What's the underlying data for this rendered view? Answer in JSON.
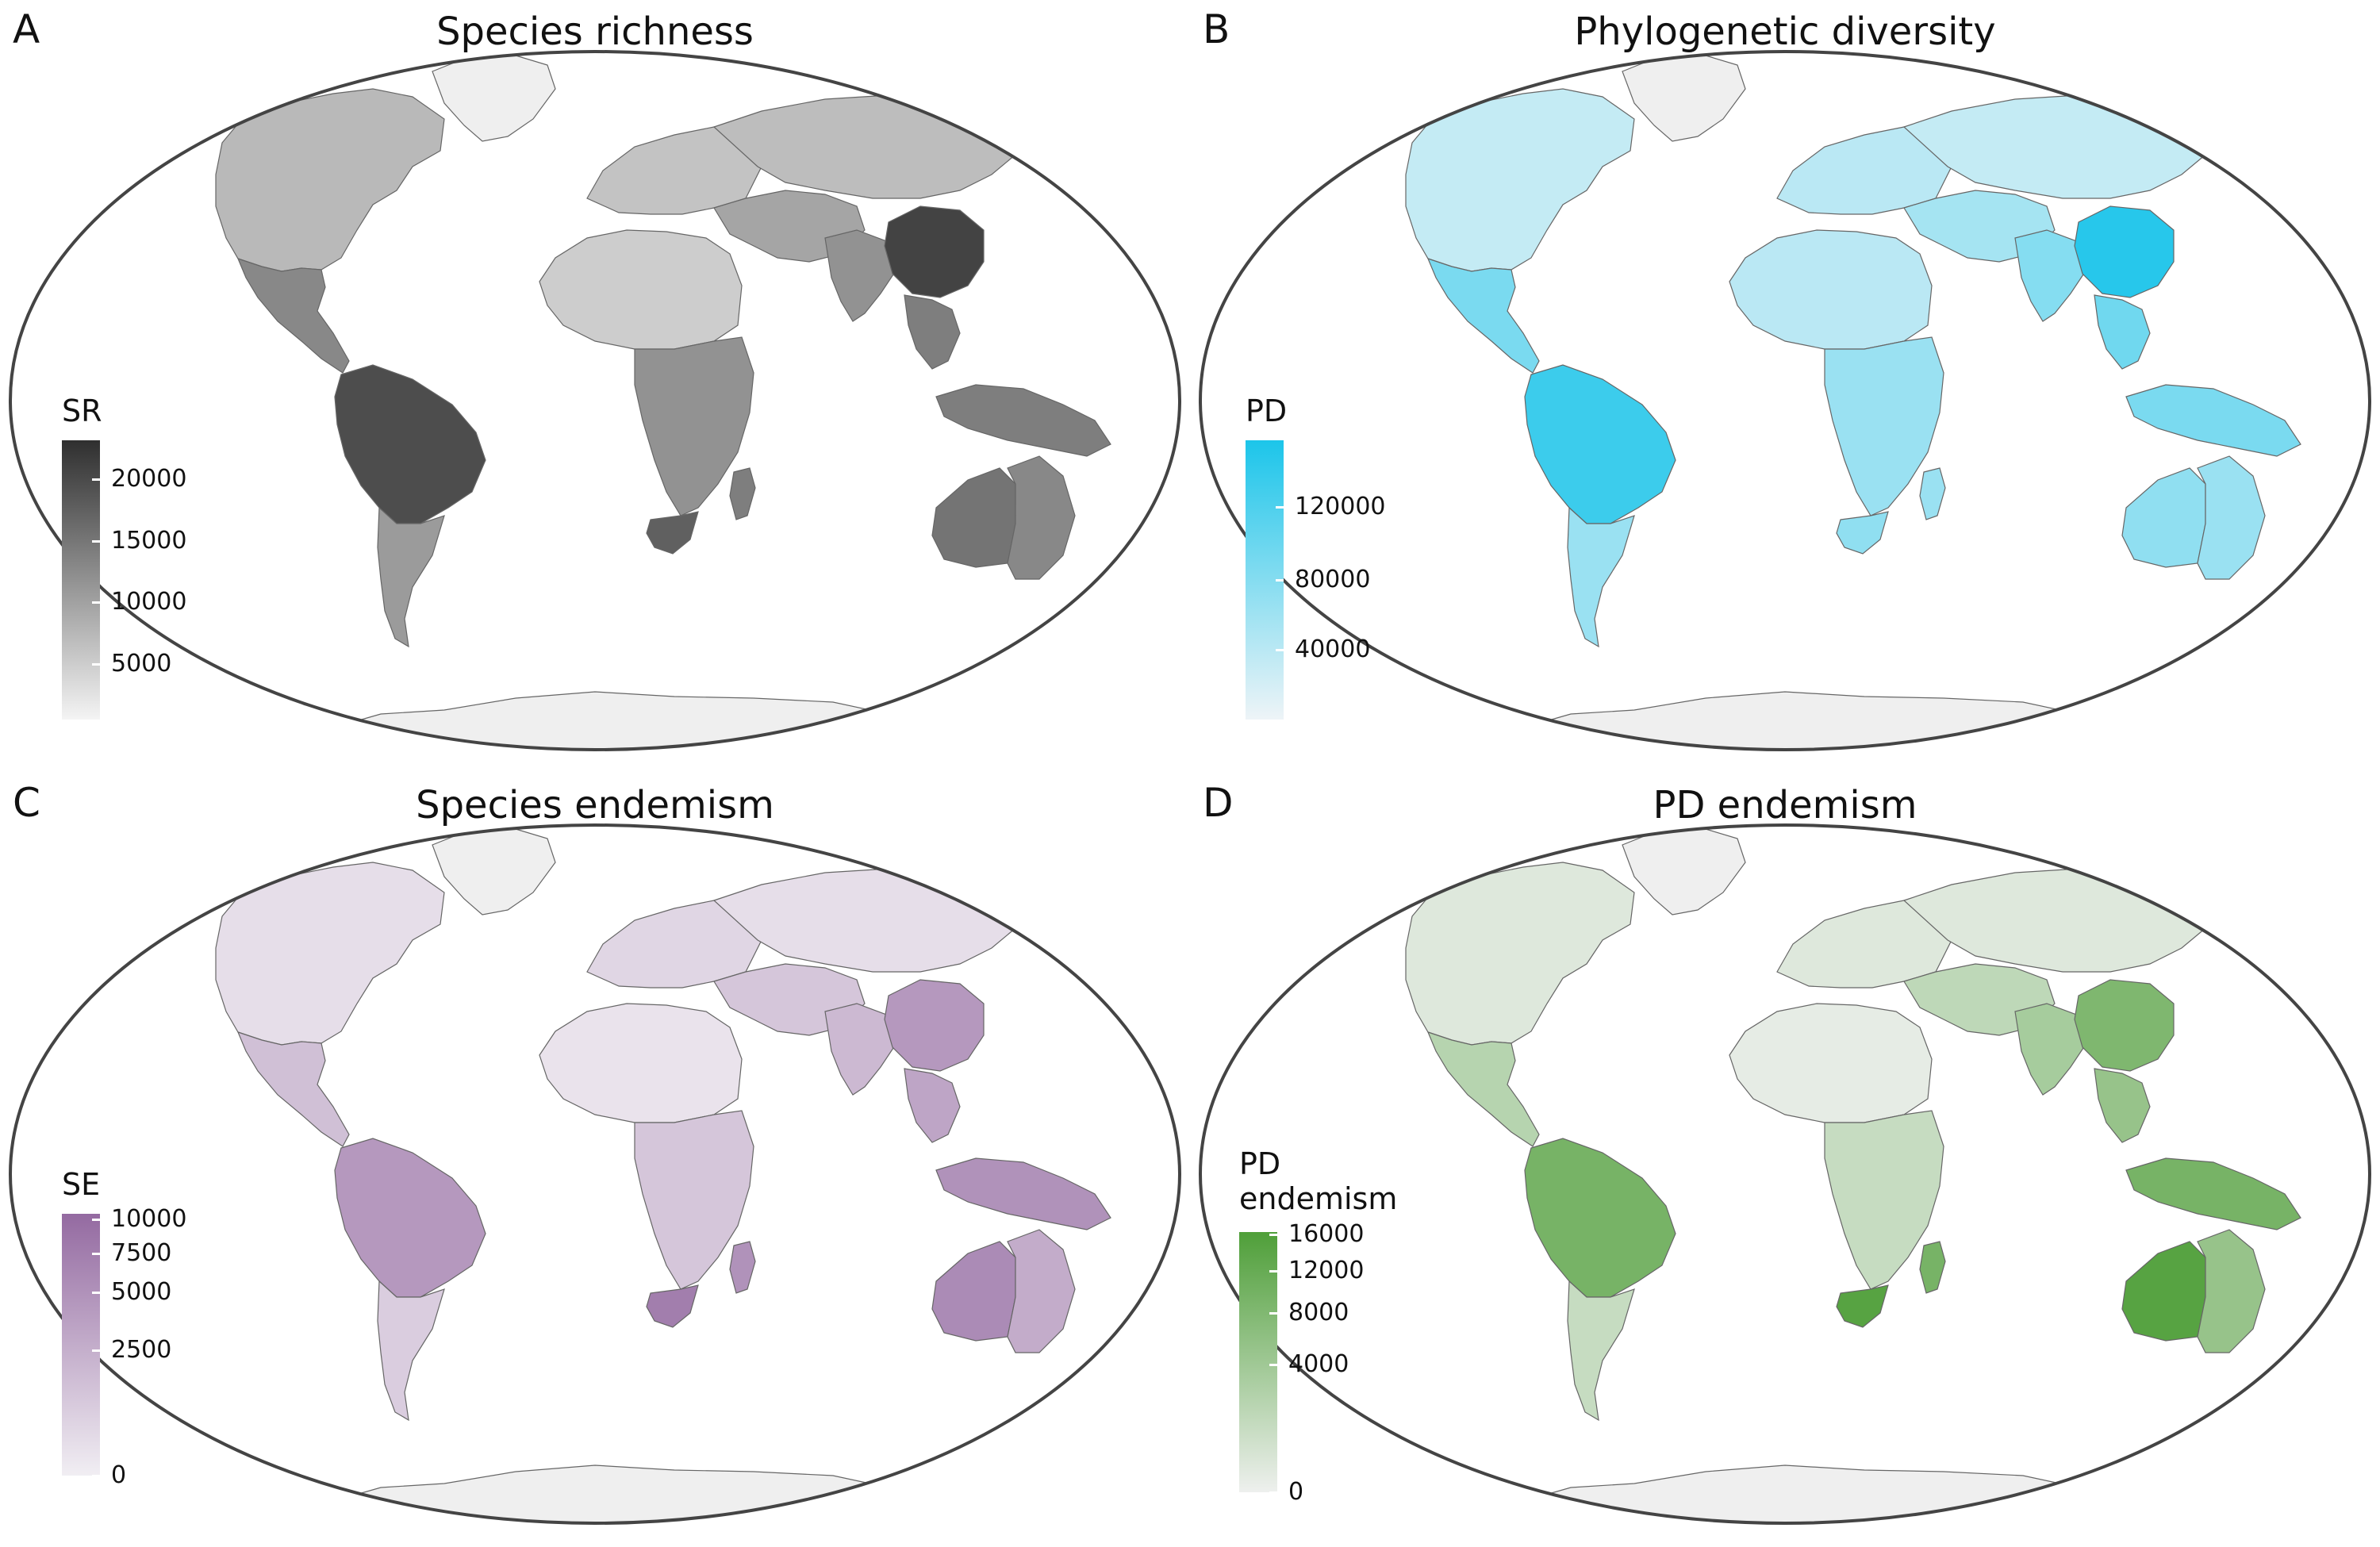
{
  "panels": [
    {
      "label": "A",
      "title": "Species richness",
      "legend": {
        "title": "SR",
        "colors": [
          "#f4f4f4",
          "#2f2f2f"
        ],
        "ticks": [
          {
            "label": "20000",
            "frac": 0.86
          },
          {
            "label": "15000",
            "frac": 0.64
          },
          {
            "label": "10000",
            "frac": 0.42
          },
          {
            "label": "5000",
            "frac": 0.2
          }
        ]
      }
    },
    {
      "label": "B",
      "title": "Phylogenetic diversity",
      "legend": {
        "title": "PD",
        "colors": [
          "#eef4f7",
          "#1cc5ea"
        ],
        "ticks": [
          {
            "label": "120000",
            "frac": 0.76
          },
          {
            "label": "80000",
            "frac": 0.5
          },
          {
            "label": "40000",
            "frac": 0.25
          }
        ]
      }
    },
    {
      "label": "C",
      "title": "Species endemism",
      "legend": {
        "title": "SE",
        "colors": [
          "#f1eef3",
          "#946aa1"
        ],
        "ticks": [
          {
            "label": "10000",
            "frac": 0.98
          },
          {
            "label": "7500",
            "frac": 0.85
          },
          {
            "label": "5000",
            "frac": 0.7
          },
          {
            "label": "2500",
            "frac": 0.48
          },
          {
            "label": "0",
            "frac": 0.0
          }
        ]
      }
    },
    {
      "label": "D",
      "title": "PD endemism",
      "legend": {
        "title": "PD\nendemism",
        "colors": [
          "#eef0ee",
          "#4f9f39"
        ],
        "ticks": [
          {
            "label": "16000",
            "frac": 0.99
          },
          {
            "label": "12000",
            "frac": 0.85
          },
          {
            "label": "8000",
            "frac": 0.69
          },
          {
            "label": "4000",
            "frac": 0.49
          },
          {
            "label": "0",
            "frac": 0.0
          }
        ]
      }
    }
  ],
  "map_data": {
    "regions": [
      {
        "name": "north-america",
        "values": [
          0.3,
          0.2,
          0.12,
          0.1
        ]
      },
      {
        "name": "mexico",
        "values": [
          0.55,
          0.55,
          0.35,
          0.35
        ]
      },
      {
        "name": "amazon",
        "values": [
          0.85,
          0.85,
          0.65,
          0.75
        ]
      },
      {
        "name": "south-america-south",
        "values": [
          0.45,
          0.4,
          0.25,
          0.25
        ]
      },
      {
        "name": "europe",
        "values": [
          0.25,
          0.25,
          0.18,
          0.1
        ]
      },
      {
        "name": "north-asia",
        "values": [
          0.28,
          0.2,
          0.12,
          0.1
        ]
      },
      {
        "name": "middle-east",
        "values": [
          0.4,
          0.35,
          0.3,
          0.3
        ]
      },
      {
        "name": "north-africa",
        "values": [
          0.2,
          0.25,
          0.08,
          0.05
        ]
      },
      {
        "name": "central-africa",
        "values": [
          0.5,
          0.4,
          0.3,
          0.25
        ]
      },
      {
        "name": "south-africa",
        "values": [
          0.75,
          0.45,
          0.85,
          0.95
        ]
      },
      {
        "name": "madagascar",
        "values": [
          0.6,
          0.4,
          0.7,
          0.75
        ]
      },
      {
        "name": "india",
        "values": [
          0.5,
          0.5,
          0.4,
          0.45
        ]
      },
      {
        "name": "china",
        "values": [
          0.9,
          0.95,
          0.65,
          0.7
        ]
      },
      {
        "name": "southeast-asia",
        "values": [
          0.6,
          0.6,
          0.55,
          0.55
        ]
      },
      {
        "name": "indonesia",
        "values": [
          0.6,
          0.55,
          0.7,
          0.75
        ]
      },
      {
        "name": "australia-west",
        "values": [
          0.65,
          0.45,
          0.75,
          0.95
        ]
      },
      {
        "name": "australia-east",
        "values": [
          0.55,
          0.4,
          0.5,
          0.55
        ]
      },
      {
        "name": "greenland",
        "values": [
          0.08,
          0.05,
          0.03,
          0.03
        ]
      },
      {
        "name": "antarctica",
        "values": [
          0.05,
          0.05,
          0.03,
          0.03
        ]
      }
    ]
  }
}
